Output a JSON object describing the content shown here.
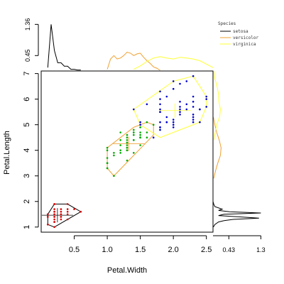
{
  "chart_data": {
    "type": "scatter",
    "xlabel": "Petal.Width",
    "ylabel": "Petal.Length",
    "xlim": [
      0,
      2.6
    ],
    "ylim": [
      0.8,
      7.1
    ],
    "x_ticks": [
      "0.5",
      "1.0",
      "1.5",
      "2.0",
      "2.5"
    ],
    "y_ticks": [
      "1",
      "2",
      "3",
      "4",
      "5",
      "6",
      "7"
    ],
    "x_tick_values": [
      0.5,
      1.0,
      1.5,
      2.0,
      2.5
    ],
    "y_tick_values": [
      1,
      2,
      3,
      4,
      5,
      6,
      7
    ],
    "grid": false,
    "legend": {
      "title": "Species",
      "position": "top-right",
      "entries": [
        {
          "label": "setosa",
          "color": "#000000"
        },
        {
          "label": "versicolor",
          "color": "#f0a030"
        },
        {
          "label": "virginica",
          "color": "#ffff33"
        }
      ]
    },
    "series": [
      {
        "name": "setosa",
        "point_color": "#dd0000",
        "hull_color": "#000000",
        "points": [
          [
            0.1,
            1.4
          ],
          [
            0.2,
            1.4
          ],
          [
            0.2,
            1.3
          ],
          [
            0.2,
            1.5
          ],
          [
            0.3,
            1.4
          ],
          [
            0.4,
            1.7
          ],
          [
            0.2,
            1.5
          ],
          [
            0.1,
            1.5
          ],
          [
            0.2,
            1.6
          ],
          [
            0.3,
            1.4
          ],
          [
            0.1,
            1.1
          ],
          [
            0.2,
            1.2
          ],
          [
            0.4,
            1.5
          ],
          [
            0.4,
            1.3
          ],
          [
            0.3,
            1.7
          ],
          [
            0.2,
            1.7
          ],
          [
            0.5,
            1.7
          ],
          [
            0.2,
            1.9
          ],
          [
            0.4,
            1.6
          ],
          [
            0.2,
            1.6
          ],
          [
            0.3,
            1.3
          ],
          [
            0.1,
            1.5
          ],
          [
            0.2,
            1.4
          ],
          [
            0.4,
            1.9
          ],
          [
            0.3,
            1.5
          ],
          [
            0.2,
            1.0
          ],
          [
            0.6,
            1.6
          ],
          [
            0.2,
            1.9
          ],
          [
            0.3,
            1.5
          ],
          [
            0.1,
            1.4
          ],
          [
            0.2,
            1.2
          ],
          [
            0.3,
            1.6
          ]
        ],
        "hull": [
          [
            0.1,
            1.1
          ],
          [
            0.2,
            1.0
          ],
          [
            0.6,
            1.6
          ],
          [
            0.4,
            1.9
          ],
          [
            0.2,
            1.9
          ],
          [
            0.1,
            1.5
          ]
        ],
        "center": [
          0.246,
          1.462
        ]
      },
      {
        "name": "versicolor",
        "point_color": "#00aa00",
        "hull_color": "#f0a030",
        "points": [
          [
            1.4,
            4.7
          ],
          [
            1.5,
            4.5
          ],
          [
            1.5,
            4.9
          ],
          [
            1.3,
            4.0
          ],
          [
            1.5,
            4.6
          ],
          [
            1.3,
            4.5
          ],
          [
            1.6,
            4.7
          ],
          [
            1.0,
            3.3
          ],
          [
            1.3,
            4.6
          ],
          [
            1.4,
            3.9
          ],
          [
            1.0,
            3.5
          ],
          [
            1.5,
            4.2
          ],
          [
            1.0,
            4.0
          ],
          [
            1.4,
            4.7
          ],
          [
            1.3,
            3.6
          ],
          [
            1.4,
            4.4
          ],
          [
            1.5,
            4.5
          ],
          [
            1.0,
            4.1
          ],
          [
            1.5,
            4.5
          ],
          [
            1.1,
            3.9
          ],
          [
            1.8,
            4.8
          ],
          [
            1.3,
            4.0
          ],
          [
            1.5,
            4.9
          ],
          [
            1.2,
            4.7
          ],
          [
            1.3,
            4.3
          ],
          [
            1.4,
            4.4
          ],
          [
            1.4,
            4.8
          ],
          [
            1.7,
            5.0
          ],
          [
            1.5,
            4.5
          ],
          [
            1.0,
            3.5
          ],
          [
            1.1,
            3.8
          ],
          [
            1.0,
            3.7
          ],
          [
            1.2,
            3.9
          ],
          [
            1.6,
            5.1
          ],
          [
            1.5,
            4.5
          ],
          [
            1.6,
            4.5
          ],
          [
            1.5,
            4.7
          ],
          [
            1.3,
            4.4
          ],
          [
            1.3,
            4.1
          ],
          [
            1.3,
            4.0
          ],
          [
            1.2,
            4.4
          ],
          [
            1.4,
            4.6
          ],
          [
            1.2,
            4.0
          ],
          [
            1.0,
            3.3
          ],
          [
            1.3,
            4.2
          ],
          [
            1.2,
            4.2
          ],
          [
            1.3,
            4.3
          ],
          [
            1.1,
            3.0
          ],
          [
            1.3,
            4.1
          ]
        ],
        "hull": [
          [
            1.0,
            3.3
          ],
          [
            1.1,
            3.0
          ],
          [
            1.7,
            4.6
          ],
          [
            1.7,
            5.0
          ],
          [
            1.6,
            5.1
          ],
          [
            1.4,
            4.9
          ],
          [
            1.0,
            4.1
          ]
        ],
        "center": [
          1.326,
          4.26
        ]
      },
      {
        "name": "virginica",
        "point_color": "#0000cc",
        "hull_color": "#ffff33",
        "points": [
          [
            2.5,
            6.0
          ],
          [
            1.9,
            5.1
          ],
          [
            2.1,
            5.9
          ],
          [
            1.8,
            5.6
          ],
          [
            2.2,
            5.8
          ],
          [
            2.1,
            6.6
          ],
          [
            1.7,
            4.5
          ],
          [
            1.8,
            6.3
          ],
          [
            1.8,
            5.8
          ],
          [
            2.5,
            6.1
          ],
          [
            2.0,
            5.1
          ],
          [
            1.9,
            5.3
          ],
          [
            2.1,
            5.5
          ],
          [
            2.0,
            5.0
          ],
          [
            2.4,
            5.1
          ],
          [
            2.3,
            5.3
          ],
          [
            1.8,
            5.5
          ],
          [
            2.2,
            6.7
          ],
          [
            2.3,
            6.9
          ],
          [
            1.5,
            5.0
          ],
          [
            2.3,
            5.7
          ],
          [
            2.0,
            4.9
          ],
          [
            2.0,
            6.7
          ],
          [
            1.8,
            4.9
          ],
          [
            2.1,
            5.7
          ],
          [
            1.8,
            6.0
          ],
          [
            1.8,
            4.8
          ],
          [
            1.8,
            4.9
          ],
          [
            2.1,
            5.6
          ],
          [
            1.6,
            5.8
          ],
          [
            1.9,
            6.1
          ],
          [
            2.0,
            6.4
          ],
          [
            2.2,
            5.6
          ],
          [
            1.5,
            5.1
          ],
          [
            1.4,
            5.6
          ],
          [
            2.3,
            6.1
          ],
          [
            2.4,
            5.6
          ],
          [
            1.8,
            5.5
          ],
          [
            2.1,
            5.4
          ],
          [
            2.4,
            5.6
          ],
          [
            2.3,
            5.1
          ],
          [
            1.9,
            5.1
          ],
          [
            2.3,
            5.9
          ],
          [
            2.5,
            5.7
          ],
          [
            2.3,
            5.2
          ],
          [
            2.0,
            5.2
          ],
          [
            2.3,
            5.4
          ],
          [
            1.8,
            5.1
          ]
        ],
        "hull": [
          [
            1.4,
            5.6
          ],
          [
            1.5,
            5.0
          ],
          [
            1.8,
            4.5
          ],
          [
            2.4,
            5.1
          ],
          [
            2.5,
            5.7
          ],
          [
            2.5,
            6.1
          ],
          [
            2.3,
            6.9
          ],
          [
            2.0,
            6.7
          ]
        ],
        "center": [
          2.026,
          5.552
        ]
      }
    ],
    "marginal_top": {
      "axis_ticks": [
        "0.45",
        "1.36"
      ],
      "axis_tick_values": [
        0.45,
        1.36
      ],
      "ymax": 1.45,
      "curves": [
        {
          "name": "setosa",
          "color": "#000000",
          "x": [
            0.1,
            0.15,
            0.2,
            0.25,
            0.3,
            0.35,
            0.4,
            0.45,
            0.5,
            0.55,
            0.6
          ],
          "y": [
            0.1,
            1.36,
            0.6,
            0.24,
            0.24,
            0.14,
            0.14,
            0.05,
            0.05,
            0.03,
            0.03
          ]
        },
        {
          "name": "versicolor",
          "color": "#f0a030",
          "x": [
            1.0,
            1.05,
            1.1,
            1.15,
            1.2,
            1.25,
            1.3,
            1.35,
            1.4,
            1.45,
            1.5,
            1.55,
            1.6,
            1.65,
            1.7,
            1.75,
            1.8
          ],
          "y": [
            0.05,
            0.35,
            0.45,
            0.35,
            0.38,
            0.45,
            0.55,
            0.52,
            0.45,
            0.5,
            0.52,
            0.4,
            0.3,
            0.22,
            0.12,
            0.08,
            0.02
          ]
        },
        {
          "name": "virginica",
          "color": "#ffff33",
          "x": [
            1.4,
            1.5,
            1.6,
            1.7,
            1.8,
            1.9,
            2.0,
            2.1,
            2.2,
            2.3,
            2.4,
            2.5,
            2.6
          ],
          "y": [
            0.05,
            0.15,
            0.28,
            0.38,
            0.42,
            0.38,
            0.35,
            0.4,
            0.38,
            0.35,
            0.3,
            0.2,
            0.1
          ]
        }
      ]
    },
    "marginal_right": {
      "axis_ticks": [
        "0.43",
        "1.3"
      ],
      "axis_tick_values": [
        0.43,
        1.3
      ],
      "xmax": 1.35,
      "curves": [
        {
          "name": "setosa",
          "color": "#000000",
          "y": [
            1.0,
            1.1,
            1.2,
            1.25,
            1.3,
            1.35,
            1.4,
            1.45,
            1.5,
            1.55,
            1.6,
            1.65,
            1.7,
            1.8,
            1.9,
            2.0
          ],
          "x": [
            0.01,
            0.05,
            0.15,
            0.3,
            0.55,
            1.25,
            0.7,
            0.15,
            0.3,
            1.3,
            0.45,
            0.15,
            0.25,
            0.05,
            0.02,
            0.0
          ]
        },
        {
          "name": "versicolor",
          "color": "#f0a030",
          "y": [
            2.9,
            3.2,
            3.5,
            3.8,
            4.1,
            4.4,
            4.7,
            5.0,
            5.3
          ],
          "x": [
            0.02,
            0.07,
            0.13,
            0.2,
            0.22,
            0.17,
            0.1,
            0.05,
            0.01
          ]
        },
        {
          "name": "virginica",
          "color": "#ffff33",
          "y": [
            4.4,
            4.7,
            5.0,
            5.3,
            5.6,
            5.9,
            6.2,
            6.5,
            6.8,
            7.1
          ],
          "x": [
            0.02,
            0.06,
            0.1,
            0.18,
            0.2,
            0.16,
            0.15,
            0.11,
            0.05,
            0.02
          ]
        }
      ]
    }
  }
}
